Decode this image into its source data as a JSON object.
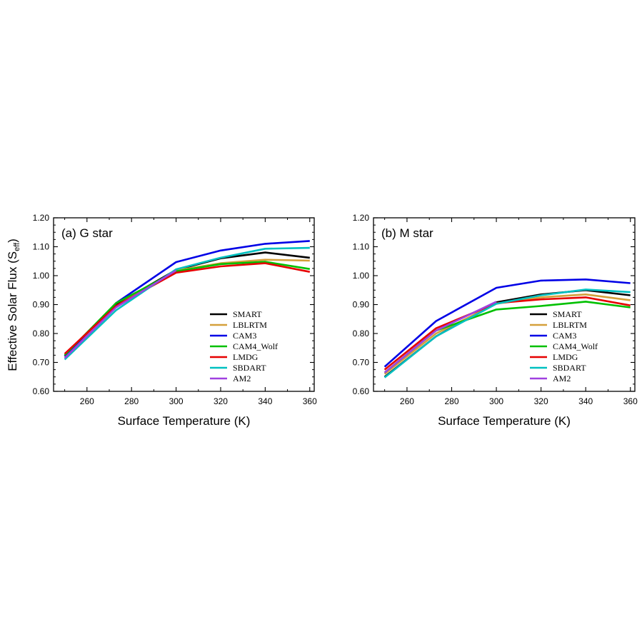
{
  "figure": {
    "ylabel_main": "Effective Solar Flux (S",
    "ylabel_sub": "eff",
    "ylabel_close": ")"
  },
  "chart_data": [
    {
      "type": "line",
      "title": "(a) G star",
      "xlabel": "Surface Temperature (K)",
      "ylabel": "Effective Solar Flux (Seff)",
      "xlim": [
        245,
        362
      ],
      "ylim": [
        0.6,
        1.2
      ],
      "x_ticks": [
        260,
        280,
        300,
        320,
        340,
        360
      ],
      "y_ticks": [
        0.6,
        0.7,
        0.8,
        0.9,
        1.0,
        1.1,
        1.2
      ],
      "legend_position": "bottom-right",
      "grid": false,
      "series": [
        {
          "name": "SMART",
          "color": "#000000",
          "x": [
            250,
            273,
            300,
            320,
            340,
            360
          ],
          "values": [
            0.72,
            0.9,
            1.02,
            1.06,
            1.08,
            1.062
          ]
        },
        {
          "name": "LBLRTM",
          "color": "#d4a03a",
          "x": [
            250,
            273,
            300,
            320,
            340,
            360
          ],
          "values": [
            0.72,
            0.895,
            1.018,
            1.043,
            1.055,
            1.052
          ]
        },
        {
          "name": "CAM3",
          "color": "#0000e6",
          "x": [
            250,
            273,
            300,
            320,
            340,
            360
          ],
          "values": [
            0.722,
            0.905,
            1.047,
            1.087,
            1.11,
            1.12
          ]
        },
        {
          "name": "CAM4_Wolf",
          "color": "#00c000",
          "x": [
            250,
            273,
            300,
            320,
            340,
            360
          ],
          "values": [
            0.725,
            0.905,
            1.015,
            1.04,
            1.048,
            1.023
          ]
        },
        {
          "name": "LMDG",
          "color": "#e60000",
          "x": [
            250,
            273,
            300,
            320,
            340,
            360
          ],
          "values": [
            0.73,
            0.895,
            1.01,
            1.032,
            1.043,
            1.013
          ]
        },
        {
          "name": "SBDART",
          "color": "#00c0c0",
          "x": [
            250,
            273,
            300,
            320,
            340,
            360
          ],
          "values": [
            0.71,
            0.88,
            1.022,
            1.062,
            1.093,
            1.096
          ]
        },
        {
          "name": "AM2",
          "color": "#a040e0",
          "x": [
            250,
            273,
            300
          ],
          "values": [
            0.715,
            0.89,
            1.018
          ]
        }
      ]
    },
    {
      "type": "line",
      "title": "(b) M star",
      "xlabel": "Surface Temperature (K)",
      "ylabel": "",
      "xlim": [
        245,
        362
      ],
      "ylim": [
        0.6,
        1.2
      ],
      "x_ticks": [
        260,
        280,
        300,
        320,
        340,
        360
      ],
      "y_ticks": [
        0.6,
        0.7,
        0.8,
        0.9,
        1.0,
        1.1,
        1.2
      ],
      "legend_position": "bottom-right",
      "grid": false,
      "series": [
        {
          "name": "SMART",
          "color": "#000000",
          "x": [
            250,
            273,
            300,
            320,
            340,
            360
          ],
          "values": [
            0.65,
            0.79,
            0.908,
            0.935,
            0.95,
            0.932
          ]
        },
        {
          "name": "LBLRTM",
          "color": "#d4a03a",
          "x": [
            250,
            273,
            300,
            320,
            340,
            360
          ],
          "values": [
            0.66,
            0.8,
            0.903,
            0.925,
            0.935,
            0.915
          ]
        },
        {
          "name": "CAM3",
          "color": "#0000e6",
          "x": [
            250,
            273,
            300,
            320,
            340,
            360
          ],
          "values": [
            0.685,
            0.843,
            0.958,
            0.983,
            0.987,
            0.974
          ]
        },
        {
          "name": "CAM4_Wolf",
          "color": "#00c000",
          "x": [
            250,
            273,
            300,
            320,
            340,
            360
          ],
          "values": [
            0.665,
            0.81,
            0.883,
            0.895,
            0.91,
            0.89
          ]
        },
        {
          "name": "LMDG",
          "color": "#e60000",
          "x": [
            250,
            273,
            300,
            320,
            340,
            360
          ],
          "values": [
            0.675,
            0.818,
            0.905,
            0.918,
            0.925,
            0.897
          ]
        },
        {
          "name": "SBDART",
          "color": "#00c0c0",
          "x": [
            250,
            273,
            300,
            320,
            340,
            360
          ],
          "values": [
            0.648,
            0.79,
            0.903,
            0.932,
            0.952,
            0.943
          ]
        },
        {
          "name": "AM2",
          "color": "#a040e0",
          "x": [
            250,
            273,
            300
          ],
          "values": [
            0.665,
            0.81,
            0.91
          ]
        }
      ]
    }
  ]
}
